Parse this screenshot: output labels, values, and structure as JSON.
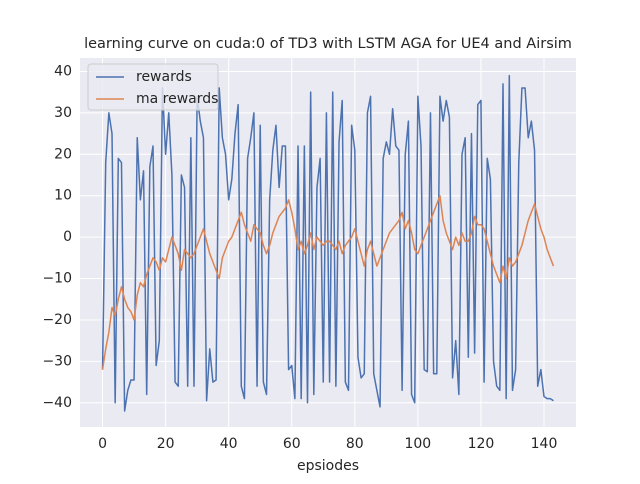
{
  "chart_data": {
    "type": "line",
    "title": "learning curve on cuda:0 of TD3 with LSTM AGA for UE4 and Airsim",
    "x_label": "epsiodes",
    "x": [
      0,
      1,
      2,
      3,
      4,
      5,
      6,
      7,
      8,
      9,
      10,
      11,
      12,
      13,
      14,
      15,
      16,
      17,
      18,
      19,
      20,
      21,
      22,
      23,
      24,
      25,
      26,
      27,
      28,
      29,
      30,
      31,
      32,
      33,
      34,
      35,
      36,
      37,
      38,
      39,
      40,
      41,
      42,
      43,
      44,
      45,
      46,
      47,
      48,
      49,
      50,
      51,
      52,
      53,
      54,
      55,
      56,
      57,
      58,
      59,
      60,
      61,
      62,
      63,
      64,
      65,
      66,
      67,
      68,
      69,
      70,
      71,
      72,
      73,
      74,
      75,
      76,
      77,
      78,
      79,
      80,
      81,
      82,
      83,
      84,
      85,
      86,
      87,
      88,
      89,
      90,
      91,
      92,
      93,
      94,
      95,
      96,
      97,
      98,
      99,
      100,
      101,
      102,
      103,
      104,
      105,
      106,
      107,
      108,
      109,
      110,
      111,
      112,
      113,
      114,
      115,
      116,
      117,
      118,
      119,
      120,
      121,
      122,
      123,
      124,
      125,
      126,
      127,
      128,
      129,
      130,
      131,
      132,
      133,
      134,
      135,
      136,
      137,
      138,
      139,
      140,
      141,
      142,
      143
    ],
    "series": [
      {
        "name": "rewards",
        "color": "#4c72b0",
        "values": [
          -32,
          18,
          30,
          25,
          -40,
          19,
          18,
          -42,
          -37,
          -34.5,
          -34.5,
          24,
          9,
          16,
          -38,
          17,
          22,
          -31,
          -25,
          36,
          20,
          30,
          15,
          -35,
          -36,
          15,
          12,
          -36,
          24,
          -36,
          34,
          28,
          24,
          -39.5,
          -27,
          -35,
          -34.5,
          36,
          24,
          20,
          9,
          14,
          25,
          32,
          -36,
          -39,
          19,
          24,
          30,
          -36,
          27,
          -35,
          -38,
          9,
          21,
          27,
          12,
          22,
          22,
          -32,
          -31,
          -39,
          22,
          -39,
          22,
          -40,
          35,
          -38,
          12,
          19,
          -35,
          30,
          -35,
          35,
          -36,
          23,
          33,
          -35,
          -37,
          27,
          21,
          -29,
          -34,
          -33,
          30,
          34,
          -33,
          -37,
          -41,
          19,
          23,
          20,
          31,
          22,
          21,
          -37,
          20,
          28,
          -38,
          -40,
          34,
          22,
          -32,
          -32.5,
          30,
          -33,
          -33,
          34,
          28,
          33,
          29,
          -34,
          -25,
          -38,
          20,
          24,
          -29,
          25,
          -28,
          32,
          33,
          -35,
          19,
          14,
          -30,
          -36,
          -37,
          37,
          -39,
          39,
          -37,
          -32,
          18,
          36,
          36,
          24,
          28,
          21,
          -36,
          -32,
          -38.5,
          -39,
          -39,
          -39.5
        ]
      },
      {
        "name": "ma rewards",
        "color": "#dd8452",
        "values": [
          -32,
          -27,
          -23,
          -17,
          -19,
          -15,
          -12,
          -15,
          -17,
          -18,
          -20,
          -14,
          -11,
          -12,
          -9,
          -7,
          -5,
          -6,
          -8,
          -5,
          -6,
          -3,
          0,
          -2,
          -4,
          -8,
          -3,
          -4,
          -5,
          -4,
          -2,
          0,
          2,
          -1,
          -4,
          -6,
          -8,
          -10,
          -5,
          -3,
          -1,
          0,
          2,
          4,
          6,
          3,
          1,
          -1,
          3,
          2,
          1,
          -2,
          -4,
          -2,
          1,
          3,
          5,
          6,
          7,
          9,
          6,
          2,
          -3,
          -1,
          -4,
          -2,
          1,
          -3,
          0,
          -1,
          -2,
          -1,
          -1,
          -2,
          -3,
          -1,
          -4,
          -2,
          -1,
          0,
          2,
          -1,
          -4,
          -7,
          -3,
          -1,
          -4,
          -7,
          -5,
          -3,
          -1,
          1,
          2,
          3,
          4,
          6,
          2,
          4,
          1,
          -3,
          -4,
          -2,
          0,
          2,
          4,
          6,
          8,
          10,
          4,
          1,
          -1,
          -3,
          0,
          -2,
          1,
          -1,
          -1,
          1,
          5,
          3,
          3,
          2,
          -1,
          -4,
          -7,
          -9,
          -11,
          -7,
          -10,
          -5,
          -7,
          -6,
          -4,
          -2,
          1,
          4,
          6,
          8,
          5,
          2,
          0,
          -3,
          -5,
          -7
        ]
      }
    ],
    "xlim": [
      -7.15,
      150.15
    ],
    "ylim": [
      -45.85,
      43.25
    ],
    "xticks": [
      0,
      20,
      40,
      60,
      80,
      100,
      120,
      140
    ],
    "yticks": [
      {
        "value": -40,
        "label": "−40"
      },
      {
        "value": -30,
        "label": "−30"
      },
      {
        "value": -20,
        "label": "−20"
      },
      {
        "value": -10,
        "label": "−10"
      },
      0,
      10,
      20,
      30,
      40
    ],
    "grid": true,
    "legend": "upper left"
  }
}
